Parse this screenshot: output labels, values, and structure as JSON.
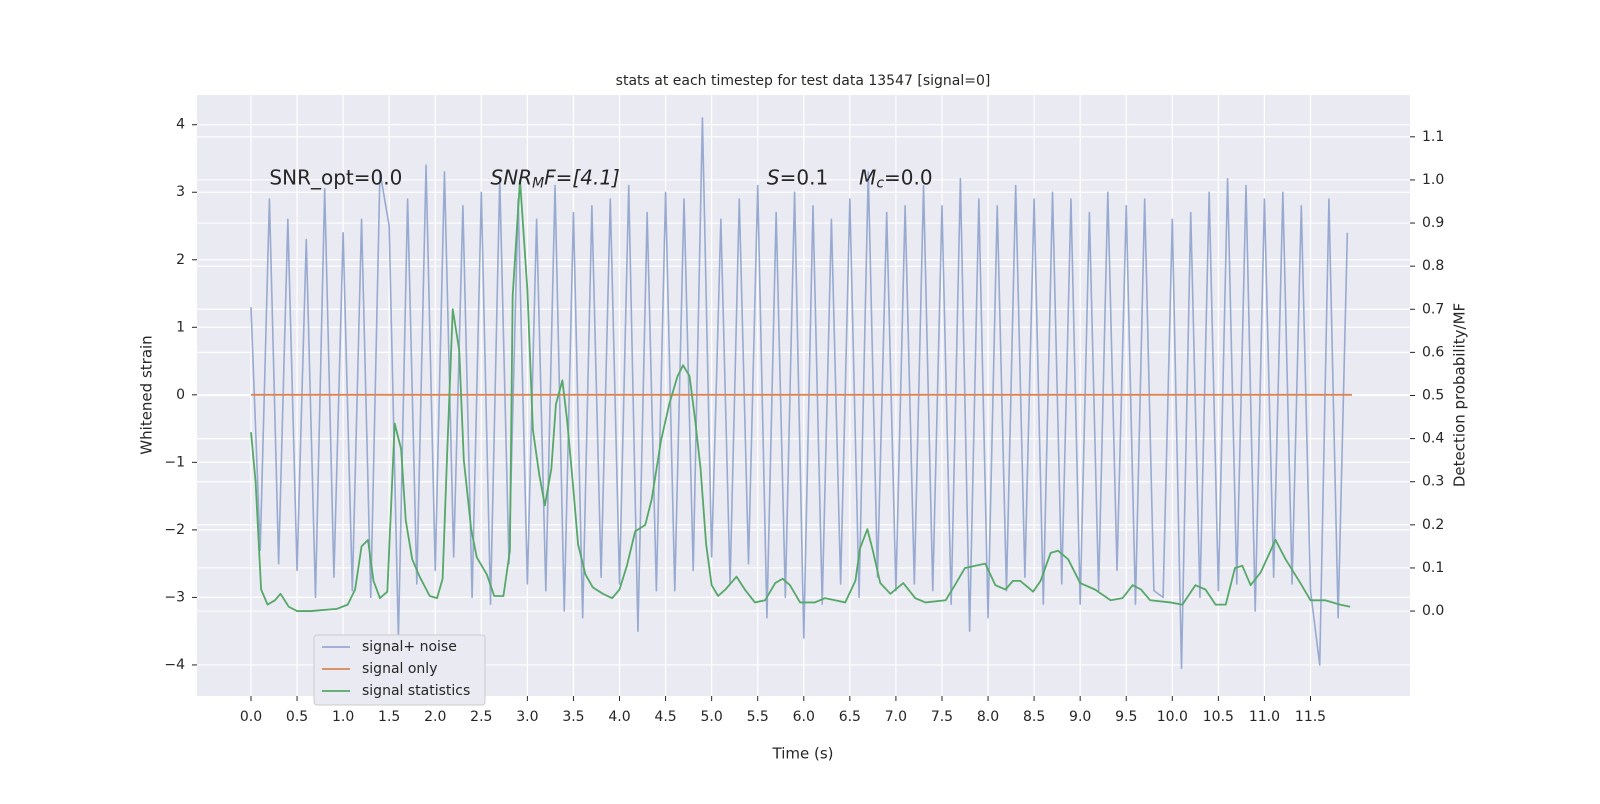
{
  "chart_data": {
    "type": "line",
    "title": "stats at each timestep for test data 13547 [signal=0]",
    "x_label": "Time (s)",
    "y_label": "Whitened strain",
    "y2_label": "Detection probability/MF",
    "annotations": [
      {
        "parts": [
          "SNR_opt=0.0"
        ]
      },
      {
        "parts": [
          "SNR",
          "M",
          "F=[4.1]"
        ]
      },
      {
        "parts": [
          "S",
          "=0.1"
        ]
      },
      {
        "parts": [
          "M",
          "c",
          "=0.0"
        ]
      }
    ],
    "xlim": [
      -0.586,
      12.58
    ],
    "ylim": [
      -4.46,
      4.44
    ],
    "y2lim": [
      -0.197,
      1.197
    ],
    "xticks": [
      {
        "value": 0,
        "label": "0.0"
      },
      0.5,
      {
        "value": 1,
        "label": "1.0"
      },
      1.5,
      {
        "value": 2,
        "label": "2.0"
      },
      2.5,
      {
        "value": 3,
        "label": "3.0"
      },
      3.5,
      {
        "value": 4,
        "label": "4.0"
      },
      4.5,
      {
        "value": 5,
        "label": "5.0"
      },
      5.5,
      {
        "value": 6,
        "label": "6.0"
      },
      6.5,
      {
        "value": 7,
        "label": "7.0"
      },
      7.5,
      {
        "value": 8,
        "label": "8.0"
      },
      8.5,
      {
        "value": 9,
        "label": "9.0"
      },
      9.5,
      {
        "value": 10,
        "label": "10.0"
      },
      10.5,
      {
        "value": 11,
        "label": "11.0"
      },
      11.5
    ],
    "yticks": [
      {
        "value": -4,
        "label": "−4"
      },
      {
        "value": -3,
        "label": "−3"
      },
      {
        "value": -2,
        "label": "−2"
      },
      {
        "value": -1,
        "label": "−1"
      },
      0,
      1,
      2,
      3,
      4
    ],
    "y2ticks": [
      {
        "value": 0,
        "label": "0.0"
      },
      0.1,
      0.2,
      0.3,
      0.4,
      0.5,
      0.6,
      0.7,
      0.8,
      0.9,
      {
        "value": 1,
        "label": "1.0"
      },
      1.1
    ],
    "grid": true,
    "legend": "lower left",
    "series": [
      {
        "name": "signal+ noise",
        "color": "#98aad0",
        "x": [
          0.0,
          0.1,
          0.2,
          0.3,
          0.4,
          0.5,
          0.6,
          0.7,
          0.8,
          0.9,
          1.0,
          1.1,
          1.2,
          1.3,
          1.4,
          1.5,
          1.6,
          1.7,
          1.8,
          1.9,
          2.0,
          2.1,
          2.2,
          2.3,
          2.4,
          2.5,
          2.6,
          2.7,
          2.8,
          2.9,
          3.0,
          3.1,
          3.2,
          3.3,
          3.4,
          3.5,
          3.6,
          3.7,
          3.8,
          3.9,
          4.0,
          4.1,
          4.2,
          4.3,
          4.4,
          4.5,
          4.6,
          4.7,
          4.8,
          4.9,
          5.0,
          5.1,
          5.2,
          5.3,
          5.4,
          5.5,
          5.6,
          5.7,
          5.8,
          5.9,
          6.0,
          6.1,
          6.2,
          6.3,
          6.4,
          6.5,
          6.6,
          6.7,
          6.8,
          6.9,
          7.0,
          7.1,
          7.2,
          7.3,
          7.4,
          7.5,
          7.6,
          7.7,
          7.8,
          7.9,
          8.0,
          8.1,
          8.2,
          8.3,
          8.4,
          8.5,
          8.6,
          8.7,
          8.8,
          8.9,
          9.0,
          9.1,
          9.2,
          9.3,
          9.4,
          9.5,
          9.6,
          9.7,
          9.8,
          9.9,
          10.0,
          10.1,
          10.2,
          10.3,
          10.4,
          10.5,
          10.6,
          10.7,
          10.8,
          10.9,
          11.0,
          11.1,
          11.2,
          11.3,
          11.4,
          11.5,
          11.6,
          11.7,
          11.8,
          11.9
        ],
        "values": [
          1.3,
          -2.3,
          2.9,
          -2.5,
          2.6,
          -2.6,
          2.3,
          -3.0,
          3.05,
          -2.7,
          2.4,
          -2.9,
          2.6,
          -3.0,
          3.3,
          2.5,
          -3.6,
          2.9,
          -2.8,
          3.4,
          -2.6,
          3.3,
          -2.4,
          2.8,
          -3.0,
          3.0,
          -3.1,
          3.2,
          -2.5,
          2.9,
          -2.8,
          2.6,
          -2.9,
          3.1,
          -3.2,
          2.7,
          -3.3,
          2.8,
          -2.7,
          2.9,
          -2.8,
          3.1,
          -3.5,
          2.7,
          -2.9,
          3.0,
          -2.9,
          2.9,
          -2.6,
          4.1,
          -2.4,
          2.6,
          -2.8,
          2.9,
          -2.5,
          3.1,
          -3.3,
          2.7,
          -3.0,
          3.0,
          -3.6,
          2.8,
          -3.1,
          2.6,
          -2.8,
          2.9,
          -3.0,
          3.3,
          -2.7,
          2.7,
          -2.9,
          2.8,
          -2.8,
          3.1,
          -2.9,
          2.8,
          -3.1,
          3.2,
          -3.5,
          2.9,
          -3.3,
          2.8,
          -2.9,
          3.1,
          -2.7,
          2.9,
          -3.1,
          3.0,
          -2.8,
          2.9,
          -3.1,
          2.7,
          -2.9,
          3.0,
          -2.6,
          2.8,
          -3.1,
          2.9,
          -2.9,
          -3.0,
          2.6,
          -4.05,
          2.7,
          -3.0,
          3.0,
          -2.9,
          3.2,
          -2.8,
          3.1,
          -3.2,
          2.9,
          -2.7,
          3.0,
          -2.8,
          2.8,
          -2.9,
          -4.0,
          2.9,
          -3.3,
          2.4
        ]
      },
      {
        "name": "signal only",
        "color": "#dd8452",
        "x": [
          0.0,
          11.95
        ],
        "values": [
          0,
          0
        ]
      },
      {
        "name": "signal statistics",
        "color": "#55a868",
        "axis": "y2",
        "x": [
          0.0,
          0.05,
          0.11,
          0.18,
          0.26,
          0.32,
          0.41,
          0.5,
          0.65,
          0.76,
          0.93,
          1.05,
          1.13,
          1.2,
          1.27,
          1.33,
          1.4,
          1.48,
          1.56,
          1.63,
          1.68,
          1.75,
          1.83,
          1.94,
          2.02,
          2.08,
          2.13,
          2.19,
          2.26,
          2.31,
          2.39,
          2.45,
          2.56,
          2.64,
          2.74,
          2.81,
          2.84,
          2.92,
          3.0,
          3.06,
          3.13,
          3.19,
          3.26,
          3.31,
          3.38,
          3.43,
          3.49,
          3.55,
          3.63,
          3.71,
          3.82,
          3.92,
          4.0,
          4.08,
          4.17,
          4.28,
          4.35,
          4.45,
          4.54,
          4.63,
          4.69,
          4.76,
          4.82,
          4.88,
          4.94,
          5.0,
          5.07,
          5.15,
          5.27,
          5.36,
          5.47,
          5.58,
          5.69,
          5.77,
          5.85,
          5.96,
          6.12,
          6.23,
          6.34,
          6.45,
          6.56,
          6.61,
          6.69,
          6.75,
          6.83,
          6.94,
          7.08,
          7.21,
          7.32,
          7.54,
          7.64,
          7.75,
          7.97,
          8.08,
          8.19,
          8.27,
          8.35,
          8.49,
          8.57,
          8.68,
          8.76,
          8.87,
          9.0,
          9.16,
          9.33,
          9.46,
          9.57,
          9.66,
          9.76,
          9.98,
          10.11,
          10.25,
          10.36,
          10.47,
          10.58,
          10.68,
          10.76,
          10.85,
          10.96,
          11.12,
          11.23,
          11.39,
          11.5,
          11.66,
          11.82,
          11.93
        ],
        "values": [
          0.415,
          0.3,
          0.05,
          0.015,
          0.025,
          0.04,
          0.01,
          0.0,
          0.0,
          0.002,
          0.005,
          0.015,
          0.05,
          0.15,
          0.165,
          0.07,
          0.03,
          0.045,
          0.435,
          0.375,
          0.21,
          0.12,
          0.08,
          0.035,
          0.03,
          0.075,
          0.37,
          0.7,
          0.605,
          0.35,
          0.19,
          0.125,
          0.085,
          0.035,
          0.035,
          0.14,
          0.73,
          1.0,
          0.745,
          0.42,
          0.315,
          0.245,
          0.33,
          0.48,
          0.535,
          0.445,
          0.305,
          0.155,
          0.085,
          0.055,
          0.04,
          0.03,
          0.05,
          0.105,
          0.185,
          0.2,
          0.26,
          0.395,
          0.48,
          0.545,
          0.57,
          0.545,
          0.445,
          0.33,
          0.155,
          0.06,
          0.035,
          0.05,
          0.08,
          0.05,
          0.02,
          0.025,
          0.065,
          0.075,
          0.06,
          0.02,
          0.02,
          0.03,
          0.025,
          0.02,
          0.07,
          0.145,
          0.19,
          0.14,
          0.065,
          0.04,
          0.065,
          0.03,
          0.02,
          0.025,
          0.06,
          0.1,
          0.11,
          0.06,
          0.05,
          0.07,
          0.07,
          0.045,
          0.07,
          0.135,
          0.14,
          0.12,
          0.065,
          0.05,
          0.025,
          0.03,
          0.06,
          0.05,
          0.025,
          0.02,
          0.015,
          0.06,
          0.05,
          0.015,
          0.015,
          0.1,
          0.105,
          0.06,
          0.09,
          0.165,
          0.12,
          0.065,
          0.025,
          0.025,
          0.015,
          0.01
        ]
      }
    ]
  }
}
